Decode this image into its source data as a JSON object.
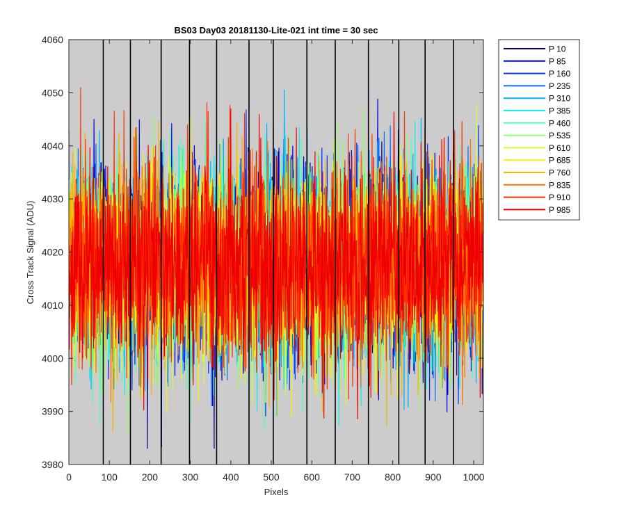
{
  "chart_data": {
    "type": "line",
    "title": "BS03 Day03 20181130-Lite-021 int time = 30 sec",
    "xlabel": "Pixels",
    "ylabel": "Cross Track Signal (ADU)",
    "xlim": [
      0,
      1024
    ],
    "ylim": [
      3980,
      4060
    ],
    "xticks": [
      0,
      100,
      200,
      300,
      400,
      500,
      600,
      700,
      800,
      900,
      1000
    ],
    "yticks": [
      3980,
      3990,
      4000,
      4010,
      4020,
      4030,
      4040,
      4050,
      4060
    ],
    "grid": false,
    "background": "#cccccc",
    "legend_position": "outside-top-right",
    "vertical_lines_x": [
      85,
      152,
      228,
      298,
      365,
      445,
      505,
      588,
      658,
      740,
      815,
      880,
      950
    ],
    "noise": {
      "mean": 4018,
      "std": 9,
      "points_per_series": 1024
    },
    "series": [
      {
        "name": "P 10",
        "color": "#00008f"
      },
      {
        "name": "P 85",
        "color": "#0000df"
      },
      {
        "name": "P 160",
        "color": "#0030ff"
      },
      {
        "name": "P 235",
        "color": "#0070ff"
      },
      {
        "name": "P 310",
        "color": "#00b0ff"
      },
      {
        "name": "P 385",
        "color": "#10efef"
      },
      {
        "name": "P 460",
        "color": "#50ffb0"
      },
      {
        "name": "P 535",
        "color": "#8fff70"
      },
      {
        "name": "P 610",
        "color": "#cfff30"
      },
      {
        "name": "P 685",
        "color": "#ffef00"
      },
      {
        "name": "P 760",
        "color": "#ffb000"
      },
      {
        "name": "P 835",
        "color": "#ff7000"
      },
      {
        "name": "P 910",
        "color": "#ff3000"
      },
      {
        "name": "P 985",
        "color": "#ef0000"
      }
    ]
  }
}
